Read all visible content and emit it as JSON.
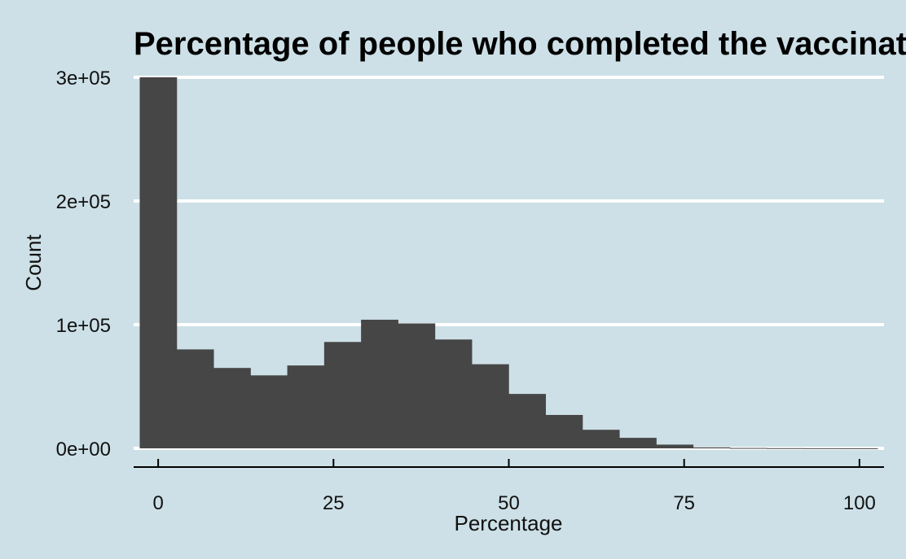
{
  "chart_data": {
    "type": "bar",
    "title": "Percentage of people who completed the vaccination",
    "xlabel": "Percentage",
    "ylabel": "Count",
    "bin_width": 5.26,
    "bin_start": -2.63,
    "values": [
      300000,
      80000,
      65000,
      59000,
      67000,
      86000,
      104000,
      101000,
      88000,
      68000,
      44000,
      27000,
      15000,
      8500,
      3000,
      800,
      300,
      150,
      100,
      50
    ],
    "xlim": [
      -3.5,
      103.5
    ],
    "ylim": [
      0,
      300000
    ],
    "x_ticks": [
      0,
      25,
      50,
      75,
      100
    ],
    "x_tick_labels": [
      "0",
      "25",
      "50",
      "75",
      "100"
    ],
    "y_ticks": [
      0,
      100000,
      200000,
      300000
    ],
    "y_tick_labels": [
      "0e+00",
      "1e+05",
      "2e+05",
      "3e+05"
    ],
    "grid": "horizontal",
    "colors": {
      "background": "#cde0e7",
      "bar": "#464646",
      "grid": "#ffffff",
      "axis": "#000000"
    }
  }
}
